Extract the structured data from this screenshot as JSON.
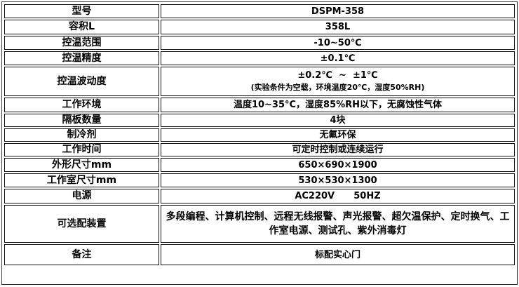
{
  "rows": [
    {
      "label": "型号",
      "value": "DSPM-358"
    },
    {
      "label": "容积L",
      "value": "358L"
    },
    {
      "label": "控温范围",
      "value": "-10~50℃"
    },
    {
      "label": "控温精度",
      "value": "±0.1℃"
    },
    {
      "label": "控温波动度",
      "value": "±0.2℃  ~  ±1℃",
      "note": "(实验条件为空载，环境温度20℃，湿度50%RH)"
    },
    {
      "label": "工作环境",
      "value": "温度10~35°C，湿度85%RH以下，无腐蚀性气体"
    },
    {
      "label": "隔板数量",
      "value": "4块"
    },
    {
      "label": "制冷剂",
      "value": "无氟环保"
    },
    {
      "label": "工作时间",
      "value": "可定时控制或连续运行"
    },
    {
      "label": "外形尺寸mm",
      "value": "650×690×1900"
    },
    {
      "label": "工作室尺寸mm",
      "value": "530×530×1300"
    },
    {
      "label": "电源",
      "value": "AC220V      50HZ"
    },
    {
      "label": "可选配装置",
      "value": "多段编程、计算机控制、远程无线报警、声光报警、超欠温保护、定时换气、工作室电源、测试孔、紫外消毒灯"
    },
    {
      "label": "备注",
      "value": "标配实心门"
    }
  ]
}
